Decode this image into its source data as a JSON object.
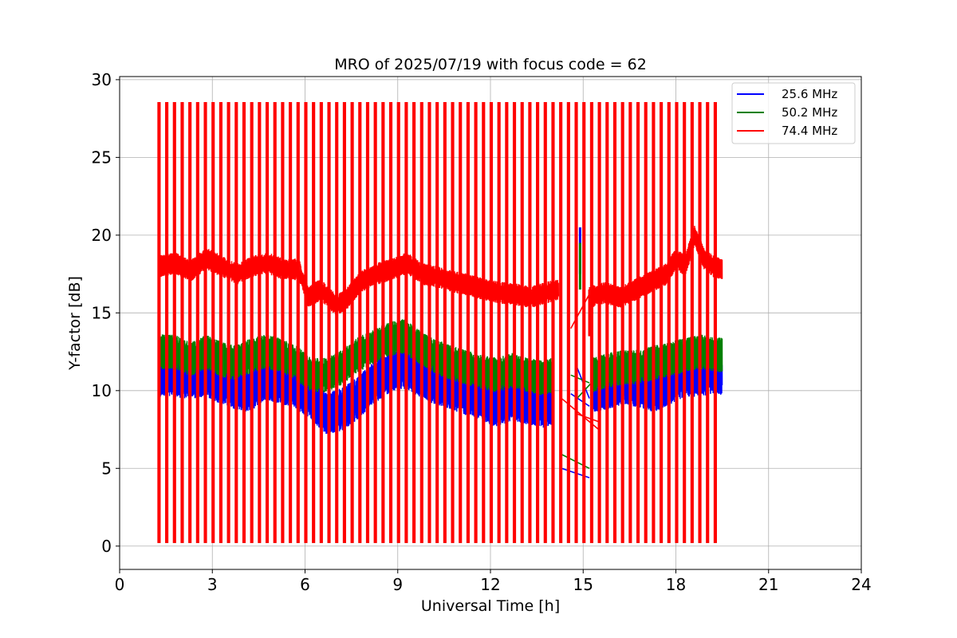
{
  "chart_data": {
    "type": "line",
    "title": "MRO of 2025/07/19 with focus code = 62",
    "xlabel": "Universal Time [h]",
    "ylabel": "Y-factor [dB]",
    "xlim": [
      0,
      24
    ],
    "ylim": [
      -1.5,
      30.2
    ],
    "xticks": [
      0,
      3,
      6,
      9,
      12,
      15,
      18,
      21,
      24
    ],
    "yticks": [
      0,
      5,
      10,
      15,
      20,
      25,
      30
    ],
    "grid": true,
    "legend_position": "top-right",
    "sweep": {
      "peak_y": 28.5,
      "floor_y": 0.2,
      "times_h": [
        1.25,
        1.5,
        1.75,
        2.0,
        2.25,
        2.5,
        2.75,
        3.0,
        3.25,
        3.5,
        3.75,
        4.0,
        4.25,
        4.5,
        4.75,
        5.0,
        5.25,
        5.5,
        5.75,
        6.0,
        6.25,
        6.5,
        6.75,
        7.0,
        7.25,
        7.5,
        7.75,
        8.0,
        8.25,
        8.5,
        8.75,
        9.0,
        9.25,
        9.5,
        9.75,
        10.0,
        10.25,
        10.5,
        10.75,
        11.0,
        11.25,
        11.5,
        11.75,
        12.0,
        12.25,
        12.5,
        12.75,
        13.0,
        13.25,
        13.5,
        13.75,
        14.0,
        14.25,
        14.5,
        14.75,
        15.0,
        15.25,
        15.5,
        15.75,
        16.0,
        16.25,
        16.5,
        16.75,
        17.0,
        17.25,
        17.5,
        17.75,
        18.0,
        18.25,
        18.5,
        18.75,
        19.0,
        19.25
      ]
    },
    "series": [
      {
        "name": "25.6 MHz",
        "color": "#0000ff",
        "band_halfwidth": 1.0,
        "x": [
          1.3,
          1.8,
          2.3,
          2.8,
          3.3,
          3.7,
          4.2,
          4.7,
          5.2,
          5.7,
          6.2,
          6.7,
          7.2,
          7.7,
          8.2,
          8.7,
          9.2,
          9.7,
          10.2,
          10.7,
          11.2,
          11.7,
          12.2,
          12.7,
          13.2,
          13.7,
          14.0
        ],
        "y": [
          11.0,
          11.0,
          10.8,
          11.0,
          10.5,
          10.2,
          10.0,
          10.8,
          10.5,
          10.2,
          9.5,
          8.5,
          8.8,
          9.5,
          10.5,
          11.2,
          11.5,
          11.0,
          10.5,
          10.2,
          9.8,
          9.5,
          9.0,
          9.5,
          9.2,
          9.0,
          9.2
        ],
        "x2": [
          15.3,
          15.8,
          16.3,
          16.8,
          17.3,
          17.8,
          18.3,
          18.8,
          19.3,
          19.5
        ],
        "y2": [
          10.0,
          10.2,
          10.5,
          10.3,
          10.0,
          10.5,
          11.0,
          11.0,
          11.2,
          11.0
        ],
        "gap_links": [
          [
            14.3,
            5.0,
            15.2,
            4.4
          ],
          [
            14.6,
            9.8,
            15.2,
            9.0
          ],
          [
            14.8,
            11.5,
            15.2,
            9.5
          ]
        ],
        "spike": [
          14.9,
          20.5
        ]
      },
      {
        "name": "50.2 MHz",
        "color": "#008000",
        "band_halfwidth": 0.8,
        "x": [
          1.3,
          1.8,
          2.3,
          2.8,
          3.3,
          3.7,
          4.2,
          4.7,
          5.2,
          5.7,
          6.2,
          6.7,
          7.2,
          7.7,
          8.2,
          8.7,
          9.2,
          9.7,
          10.2,
          10.7,
          11.2,
          11.7,
          12.2,
          12.7,
          13.2,
          13.7,
          14.0
        ],
        "y": [
          12.5,
          12.5,
          12.0,
          12.5,
          12.0,
          11.8,
          12.2,
          12.5,
          12.3,
          11.8,
          11.0,
          11.0,
          11.5,
          12.3,
          12.8,
          13.3,
          13.5,
          12.8,
          12.2,
          11.8,
          11.5,
          11.2,
          11.0,
          11.3,
          11.0,
          10.8,
          11.0
        ],
        "x2": [
          15.3,
          15.8,
          16.3,
          16.8,
          17.3,
          17.8,
          18.3,
          18.8,
          19.3,
          19.5
        ],
        "y2": [
          11.0,
          11.3,
          11.5,
          11.5,
          11.8,
          12.0,
          12.3,
          12.5,
          12.3,
          12.3
        ],
        "gap_links": [
          [
            14.3,
            5.9,
            15.2,
            5.0
          ],
          [
            14.6,
            11.0,
            15.2,
            10.5
          ],
          [
            14.8,
            9.5,
            15.5,
            11.0
          ]
        ],
        "spike": [
          14.9,
          19.5
        ]
      },
      {
        "name": "74.4 MHz",
        "color": "#ff0000",
        "band_halfwidth": 0.5,
        "x": [
          1.3,
          1.8,
          2.3,
          2.8,
          3.3,
          3.8,
          4.3,
          4.8,
          5.3,
          5.8,
          6.1,
          6.5,
          7.0,
          7.3,
          7.8,
          8.3,
          8.8,
          9.3,
          9.8,
          10.3,
          10.8,
          11.3,
          11.8,
          12.3,
          12.8,
          13.3,
          13.8,
          14.2
        ],
        "y": [
          18.0,
          18.2,
          17.7,
          18.5,
          18.0,
          17.5,
          18.0,
          18.2,
          17.8,
          17.8,
          16.0,
          16.5,
          15.5,
          15.8,
          17.0,
          17.5,
          17.8,
          18.2,
          17.5,
          17.3,
          17.0,
          16.8,
          16.5,
          16.3,
          16.2,
          16.0,
          16.3,
          16.5
        ],
        "x2": [
          15.2,
          15.7,
          16.2,
          16.7,
          17.2,
          17.7,
          18.0,
          18.3,
          18.6,
          18.9,
          19.2,
          19.5
        ],
        "y2": [
          16.0,
          16.3,
          16.0,
          16.5,
          17.0,
          17.5,
          18.5,
          18.0,
          20.0,
          18.5,
          18.0,
          17.8
        ],
        "gap_links": [
          [
            14.3,
            9.5,
            15.5,
            7.5
          ],
          [
            14.6,
            14.0,
            15.2,
            16.2
          ],
          [
            14.8,
            8.5,
            15.5,
            8.0
          ]
        ],
        "spike": [
          15.2,
          16.5
        ]
      }
    ]
  }
}
